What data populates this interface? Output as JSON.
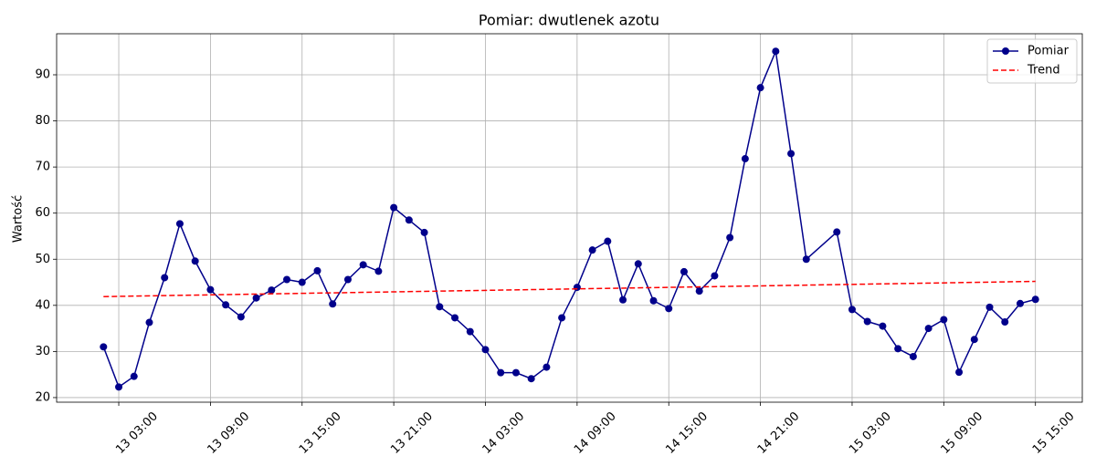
{
  "chart_data": {
    "type": "line",
    "title": "Pomiar: dwutlenek azotu",
    "y_label": "Wartość",
    "xlim": [
      "12 22:56",
      "15 18:04"
    ],
    "ylim": [
      19,
      98.9
    ],
    "xticks": [
      "13 03:00",
      "13 09:00",
      "13 15:00",
      "13 21:00",
      "14 03:00",
      "14 09:00",
      "14 15:00",
      "14 21:00",
      "15 03:00",
      "15 09:00",
      "15 15:00"
    ],
    "yticks": [
      20,
      30,
      40,
      50,
      60,
      70,
      80,
      90
    ],
    "grid": true,
    "legend": "upper right",
    "series": [
      {
        "name": "Pomiar",
        "color": "#00008b",
        "marker": true,
        "dash": false,
        "x": [
          "13 02:00",
          "13 03:00",
          "13 04:00",
          "13 05:00",
          "13 06:00",
          "13 07:00",
          "13 08:00",
          "13 09:00",
          "13 10:00",
          "13 11:00",
          "13 12:00",
          "13 13:00",
          "13 14:00",
          "13 15:00",
          "13 16:00",
          "13 17:00",
          "13 18:00",
          "13 19:00",
          "13 20:00",
          "13 21:00",
          "13 22:00",
          "13 23:00",
          "14 00:00",
          "14 01:00",
          "14 02:00",
          "14 03:00",
          "14 04:00",
          "14 05:00",
          "14 06:00",
          "14 07:00",
          "14 08:00",
          "14 09:00",
          "14 10:00",
          "14 11:00",
          "14 12:00",
          "14 13:00",
          "14 14:00",
          "14 15:00",
          "14 16:00",
          "14 17:00",
          "14 18:00",
          "14 19:00",
          "14 20:00",
          "14 21:00",
          "14 22:00",
          "14 23:00",
          "15 00:00",
          "15 02:00",
          "15 03:00",
          "15 04:00",
          "15 05:00",
          "15 06:00",
          "15 07:00",
          "15 08:00",
          "15 09:00",
          "15 10:00",
          "15 11:00",
          "15 12:00",
          "15 13:00",
          "15 14:00",
          "15 15:00"
        ],
        "values": [
          31,
          22.3,
          24.6,
          36.3,
          46,
          57.7,
          49.6,
          43.4,
          40.1,
          37.5,
          41.6,
          43.3,
          45.6,
          45,
          47.5,
          40.3,
          45.6,
          48.8,
          47.4,
          61.2,
          58.5,
          55.8,
          39.7,
          37.3,
          34.3,
          30.4,
          25.4,
          25.4,
          24.1,
          26.6,
          37.3,
          43.9,
          52,
          53.9,
          41.2,
          49,
          41,
          39.3,
          47.3,
          43.1,
          46.4,
          54.7,
          71.8,
          87.2,
          95.1,
          72.9,
          50,
          55.9,
          39.1,
          36.5,
          35.5,
          30.6,
          28.9,
          35,
          36.9,
          25.5,
          32.6,
          39.6,
          36.4,
          40.4,
          41.3
        ]
      },
      {
        "name": "Trend",
        "color": "#ff0000",
        "marker": false,
        "dash": true,
        "x": [
          "13 02:00",
          "15 15:00"
        ],
        "values": [
          41.9,
          45.2
        ]
      }
    ]
  }
}
